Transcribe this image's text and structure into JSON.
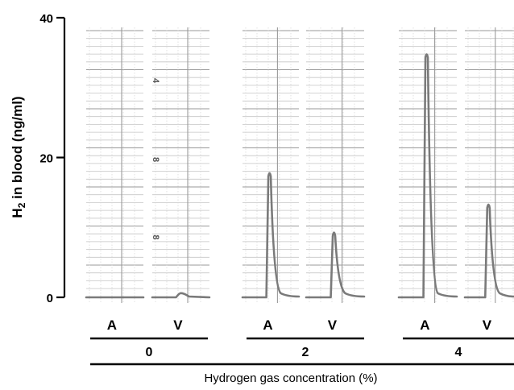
{
  "chart_data": {
    "type": "line",
    "title": "",
    "ylabel_main": "H",
    "ylabel_sub": "2",
    "ylabel_rest": " in blood (ng/ml)",
    "xlabel": "Hydrogen gas concentration (%)",
    "ylim": [
      0,
      40
    ],
    "yticks": [
      {
        "value": 40,
        "label": "40"
      },
      {
        "value": 20,
        "label": "20"
      },
      {
        "value": 0,
        "label": "0"
      }
    ],
    "groups": [
      {
        "label": "0",
        "panels": [
          {
            "label": "A",
            "peak": 0
          },
          {
            "label": "V",
            "peak": 0.6
          }
        ]
      },
      {
        "label": "2",
        "panels": [
          {
            "label": "A",
            "peak": 18
          },
          {
            "label": "V",
            "peak": 9.5
          }
        ]
      },
      {
        "label": "4",
        "panels": [
          {
            "label": "A",
            "peak": 35
          },
          {
            "label": "V",
            "peak": 13.5
          }
        ]
      }
    ],
    "chart_marks": [
      {
        "label": "4",
        "value": 31
      },
      {
        "label": "8",
        "value": 19.7
      },
      {
        "label": "8",
        "value": 8.6
      }
    ],
    "colors": {
      "trace": "#7a7a7a",
      "grid": "#b5b5b5",
      "axis": "#000000"
    }
  }
}
